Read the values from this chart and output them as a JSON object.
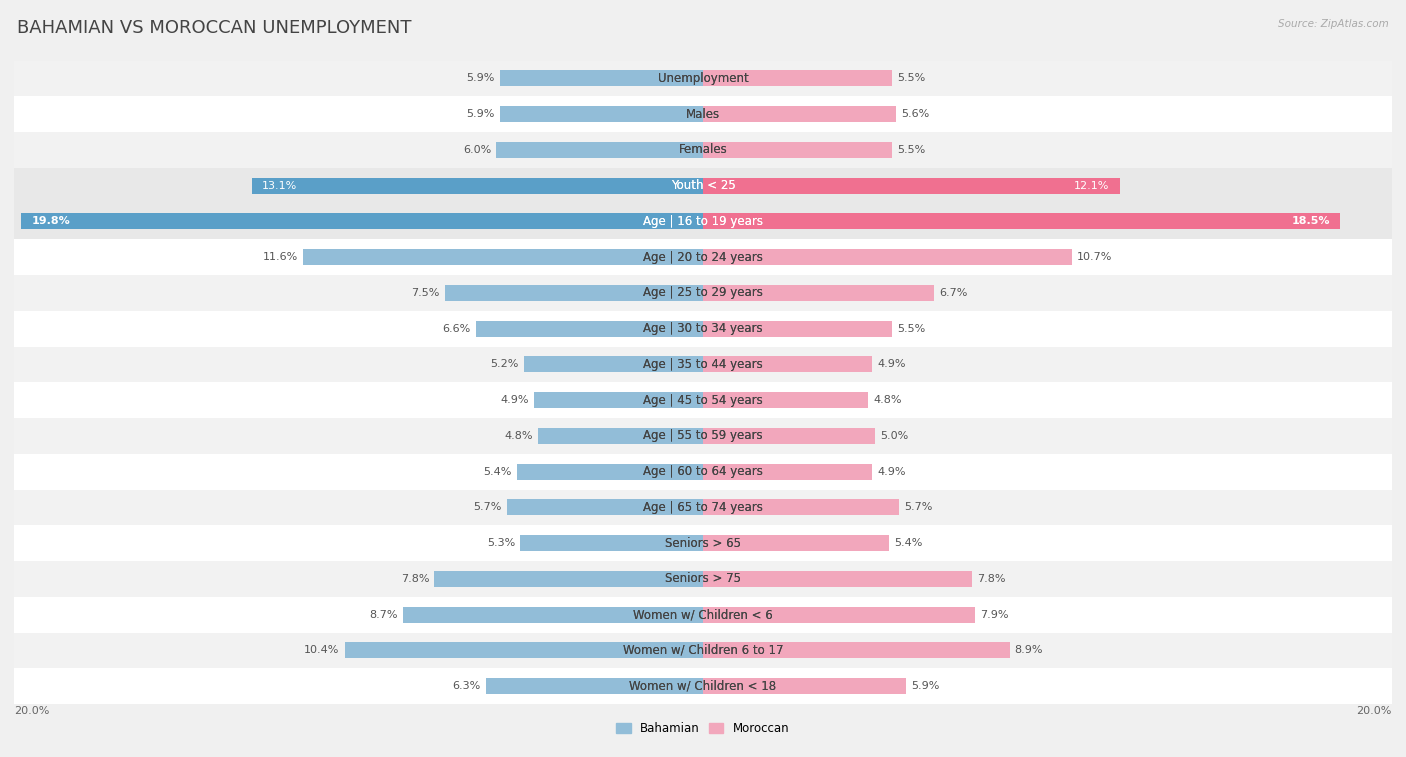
{
  "title": "BAHAMIAN VS MOROCCAN UNEMPLOYMENT",
  "source": "Source: ZipAtlas.com",
  "categories": [
    "Unemployment",
    "Males",
    "Females",
    "Youth < 25",
    "Age | 16 to 19 years",
    "Age | 20 to 24 years",
    "Age | 25 to 29 years",
    "Age | 30 to 34 years",
    "Age | 35 to 44 years",
    "Age | 45 to 54 years",
    "Age | 55 to 59 years",
    "Age | 60 to 64 years",
    "Age | 65 to 74 years",
    "Seniors > 65",
    "Seniors > 75",
    "Women w/ Children < 6",
    "Women w/ Children 6 to 17",
    "Women w/ Children < 18"
  ],
  "bahamian": [
    5.9,
    5.9,
    6.0,
    13.1,
    19.8,
    11.6,
    7.5,
    6.6,
    5.2,
    4.9,
    4.8,
    5.4,
    5.7,
    5.3,
    7.8,
    8.7,
    10.4,
    6.3
  ],
  "moroccan": [
    5.5,
    5.6,
    5.5,
    12.1,
    18.5,
    10.7,
    6.7,
    5.5,
    4.9,
    4.8,
    5.0,
    4.9,
    5.7,
    5.4,
    7.8,
    7.9,
    8.9,
    5.9
  ],
  "bahamian_color": "#92bdd8",
  "moroccan_color": "#f2a7bc",
  "highlight_rows": [
    3,
    4
  ],
  "bahamian_highlight_color": "#5a9fc8",
  "moroccan_highlight_color": "#f07090",
  "row_bg_colors": [
    "#f2f2f2",
    "#ffffff"
  ],
  "highlight_bg_color": "#e8e8e8",
  "outer_bg_color": "#f0f0f0",
  "max_value": 20.0,
  "legend_bahamian": "Bahamian",
  "legend_moroccan": "Moroccan",
  "title_fontsize": 13,
  "label_fontsize": 8.5,
  "value_fontsize": 8.0
}
